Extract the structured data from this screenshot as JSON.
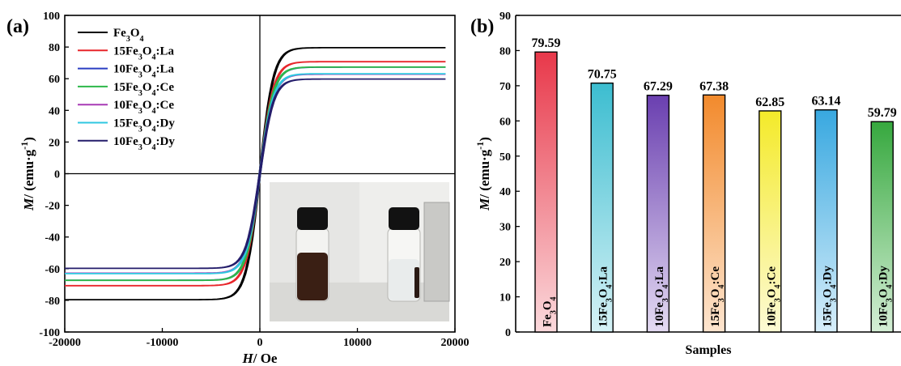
{
  "chart_data": [
    {
      "panel_label": "(a)",
      "type": "line",
      "title": "",
      "xlabel": {
        "symbol": "H",
        "unit": "/ Oe"
      },
      "ylabel": {
        "symbol": "M",
        "unit": "/ (emu·g",
        "exp": "-1",
        "close": ")"
      },
      "xlim": [
        -20000,
        20000
      ],
      "ylim": [
        -100,
        100
      ],
      "xticks": [
        -20000,
        -10000,
        0,
        10000,
        20000
      ],
      "xtick_labels": [
        "-20000",
        "-10000",
        "0",
        "10000",
        "20000"
      ],
      "yticks": [
        -100,
        -80,
        -60,
        -40,
        -20,
        0,
        20,
        40,
        60,
        80,
        100
      ],
      "ytick_labels": [
        "-100",
        "-80",
        "-60",
        "-40",
        "-20",
        "0",
        "20",
        "40",
        "60",
        "80",
        "100"
      ],
      "legend": "top-left",
      "series": [
        {
          "name": "Fe3O4",
          "prefix": "Fe",
          "sub1": "3",
          "mid": "O",
          "sub2": "4",
          "suffix": "",
          "color": "#000000",
          "ms": 79.59
        },
        {
          "name": "15Fe3O4:La",
          "prefix": "15Fe",
          "sub1": "3",
          "mid": "O",
          "sub2": "4",
          "suffix": ":La",
          "color": "#e8262b",
          "ms": 70.75
        },
        {
          "name": "10Fe3O4:La",
          "prefix": "10Fe",
          "sub1": "3",
          "mid": "O",
          "sub2": "4",
          "suffix": ":La",
          "color": "#2a3ec2",
          "ms": 67.29
        },
        {
          "name": "15Fe3O4:Ce",
          "prefix": "15Fe",
          "sub1": "3",
          "mid": "O",
          "sub2": "4",
          "suffix": ":Ce",
          "color": "#2eb84a",
          "ms": 67.38
        },
        {
          "name": "10Fe3O4:Ce",
          "prefix": "10Fe",
          "sub1": "3",
          "mid": "O",
          "sub2": "4",
          "suffix": ":Ce",
          "color": "#a83ab5",
          "ms": 62.85
        },
        {
          "name": "15Fe3O4:Dy",
          "prefix": "15Fe",
          "sub1": "3",
          "mid": "O",
          "sub2": "4",
          "suffix": ":Dy",
          "color": "#2fc7e0",
          "ms": 63.14
        },
        {
          "name": "10Fe3O4:Dy",
          "prefix": "10Fe",
          "sub1": "3",
          "mid": "O",
          "sub2": "4",
          "suffix": ":Dy",
          "color": "#241d6b",
          "ms": 59.79
        }
      ],
      "inset": {
        "type": "photo",
        "content": [
          "vial with dark dispersed suspension",
          "vial with particles attracted to magnet"
        ]
      }
    },
    {
      "panel_label": "(b)",
      "type": "bar",
      "title": "",
      "xlabel": "Samples",
      "ylabel": {
        "symbol": "M",
        "unit": "/ (emu·g",
        "exp": "-1",
        "close": ")"
      },
      "ylim": [
        0,
        90
      ],
      "yticks": [
        0,
        10,
        20,
        30,
        40,
        50,
        60,
        70,
        80,
        90
      ],
      "ytick_labels": [
        "0",
        "10",
        "20",
        "30",
        "40",
        "50",
        "60",
        "70",
        "80",
        "90"
      ],
      "categories": [
        {
          "name": "Fe3O4",
          "prefix": "Fe",
          "sub1": "3",
          "mid": "O",
          "sub2": "4",
          "suffix": ""
        },
        {
          "name": "15Fe3O4:La",
          "prefix": "15Fe",
          "sub1": "3",
          "mid": "O",
          "sub2": "4",
          "suffix": ":La"
        },
        {
          "name": "10Fe3O4:La",
          "prefix": "10Fe",
          "sub1": "3",
          "mid": "O",
          "sub2": "4",
          "suffix": ":La"
        },
        {
          "name": "15Fe3O4:Ce",
          "prefix": "15Fe",
          "sub1": "3",
          "mid": "O",
          "sub2": "4",
          "suffix": ":Ce"
        },
        {
          "name": "10Fe3O4:Ce",
          "prefix": "10Fe",
          "sub1": "3",
          "mid": "O",
          "sub2": "4",
          "suffix": ":Ce"
        },
        {
          "name": "15Fe3O4:Dy",
          "prefix": "15Fe",
          "sub1": "3",
          "mid": "O",
          "sub2": "4",
          "suffix": ":Dy"
        },
        {
          "name": "10Fe3O4:Dy",
          "prefix": "10Fe",
          "sub1": "3",
          "mid": "O",
          "sub2": "4",
          "suffix": ":Dy"
        }
      ],
      "values": [
        79.59,
        70.75,
        67.29,
        67.38,
        62.85,
        63.14,
        59.79
      ],
      "value_labels": [
        "79.59",
        "70.75",
        "67.29",
        "67.38",
        "62.85",
        "63.14",
        "59.79"
      ],
      "colors": [
        [
          "#e8384a",
          "#fbd9dc"
        ],
        [
          "#3cbdd0",
          "#d6f2f6"
        ],
        [
          "#6a3fb0",
          "#e4dbf2"
        ],
        [
          "#f28a2c",
          "#fde5cf"
        ],
        [
          "#f4ea2a",
          "#fdfad4"
        ],
        [
          "#38a8e0",
          "#d7eefa"
        ],
        [
          "#36a83e",
          "#d5efd6"
        ]
      ]
    }
  ]
}
